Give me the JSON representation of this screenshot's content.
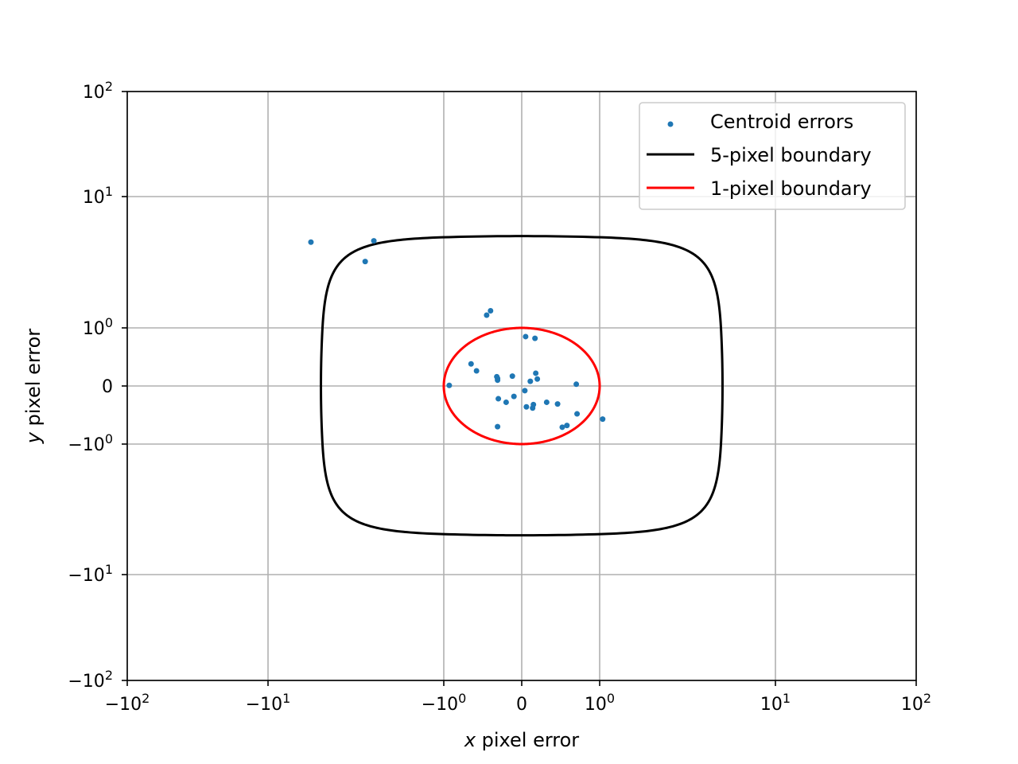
{
  "chart_data": {
    "type": "scatter",
    "xlabel_italic": "x",
    "xlabel_rest": " pixel error",
    "ylabel_italic": "y",
    "ylabel_rest": " pixel error",
    "xscale": "symlog",
    "yscale": "symlog",
    "linthresh": 1,
    "xlim": [
      -100,
      100
    ],
    "ylim": [
      -100,
      100
    ],
    "grid": true,
    "legend_position": "top-right",
    "x_ticks": [
      {
        "value": -100,
        "base": "− 10",
        "exp": "2"
      },
      {
        "value": -10,
        "base": "− 10",
        "exp": "1"
      },
      {
        "value": -1,
        "base": "− 10",
        "exp": "0"
      },
      {
        "value": 0,
        "base": "0",
        "exp": ""
      },
      {
        "value": 1,
        "base": "10",
        "exp": "0"
      },
      {
        "value": 10,
        "base": "10",
        "exp": "1"
      },
      {
        "value": 100,
        "base": "10",
        "exp": "2"
      }
    ],
    "y_ticks": [
      {
        "value": 100,
        "base": "10",
        "exp": "2"
      },
      {
        "value": 10,
        "base": "10",
        "exp": "1"
      },
      {
        "value": 1,
        "base": "10",
        "exp": "0"
      },
      {
        "value": 0,
        "base": "0",
        "exp": ""
      },
      {
        "value": -1,
        "base": "− 10",
        "exp": "0"
      },
      {
        "value": -10,
        "base": "− 10",
        "exp": "1"
      },
      {
        "value": -100,
        "base": "− 10",
        "exp": "2"
      }
    ],
    "series": [
      {
        "name": "Centroid errors",
        "kind": "scatter",
        "color": "#1f77b4",
        "x": [
          -5.7,
          -2.5,
          -2.8,
          -0.45,
          -0.4,
          -0.65,
          -0.58,
          -0.32,
          -0.31,
          -0.3,
          -0.12,
          -0.2,
          -0.31,
          -0.1,
          -0.93,
          0.05,
          0.17,
          0.18,
          0.11,
          0.2,
          0.04,
          0.06,
          0.14,
          0.15,
          0.32,
          0.46,
          0.7,
          0.71,
          0.58,
          0.52,
          1.04,
          -0.31
        ],
        "y": [
          4.5,
          4.6,
          3.2,
          1.25,
          1.35,
          0.38,
          0.26,
          0.16,
          0.1,
          -0.22,
          0.17,
          -0.28,
          -0.7,
          -0.18,
          0.01,
          0.85,
          0.82,
          0.22,
          0.08,
          0.12,
          -0.08,
          -0.36,
          -0.38,
          -0.32,
          -0.28,
          -0.31,
          0.03,
          -0.48,
          -0.68,
          -0.71,
          -0.57,
          0.13
        ]
      },
      {
        "name": "5-pixel boundary",
        "kind": "line",
        "color": "#000000"
      },
      {
        "name": "1-pixel boundary",
        "kind": "line",
        "color": "#ff0000"
      }
    ],
    "boundaries": [
      {
        "series": "5-pixel boundary",
        "radius": 5
      },
      {
        "series": "1-pixel boundary",
        "radius": 1
      }
    ]
  }
}
